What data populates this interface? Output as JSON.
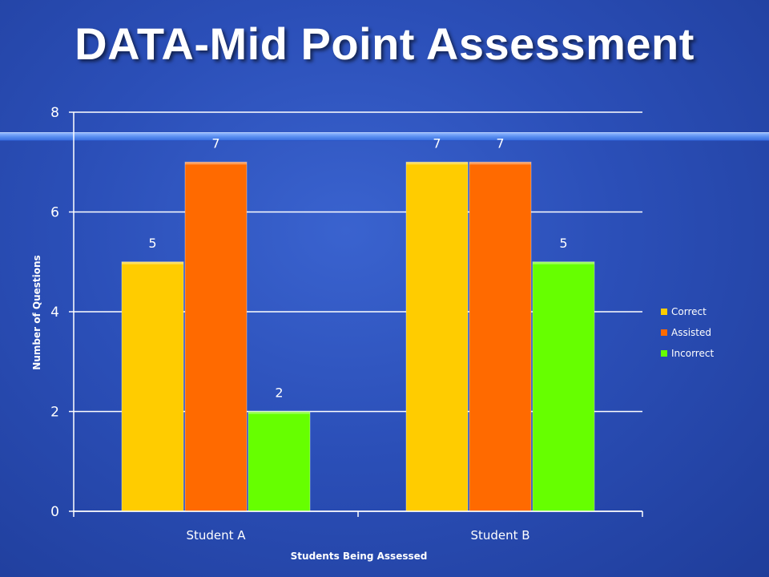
{
  "slide": {
    "title": "DATA-Mid Point Assessment"
  },
  "chart_data": {
    "type": "bar",
    "categories": [
      "Student A",
      "Student B"
    ],
    "series": [
      {
        "name": "Correct",
        "values": [
          5,
          7
        ],
        "color": "#FFCC00"
      },
      {
        "name": "Assisted",
        "values": [
          7,
          7
        ],
        "color": "#FF6A00"
      },
      {
        "name": "Incorrect",
        "values": [
          2,
          5
        ],
        "color": "#66FF00"
      }
    ],
    "data_labels": [
      [
        "5",
        "7"
      ],
      [
        "7",
        "7"
      ],
      [
        "2",
        "5"
      ]
    ],
    "xlabel": "Students Being Assessed",
    "ylabel": "Number of Questions",
    "ylim": [
      0,
      8
    ],
    "yticks": [
      "0",
      "2",
      "4",
      "6",
      "8"
    ],
    "grid": true,
    "legend_position": "right"
  }
}
